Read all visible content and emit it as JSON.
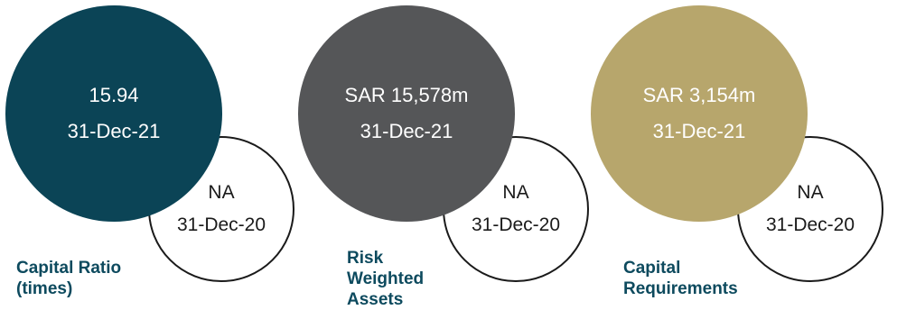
{
  "colors": {
    "teal": "#0b4456",
    "grey": "#555658",
    "gold": "#b7a66c",
    "label": "#0d4a5e"
  },
  "metrics": [
    {
      "label_lines": [
        "Capital Ratio",
        "(times)"
      ],
      "current_value": "15.94",
      "current_date": "31-Dec-21",
      "prior_value": "NA",
      "prior_date": "31-Dec-20"
    },
    {
      "label_lines": [
        "Risk",
        "Weighted",
        "Assets"
      ],
      "current_value": "SAR 15,578m",
      "current_date": "31-Dec-21",
      "prior_value": "NA",
      "prior_date": "31-Dec-20"
    },
    {
      "label_lines": [
        "Capital",
        "Requirements"
      ],
      "current_value": "SAR 3,154m",
      "current_date": "31-Dec-21",
      "prior_value": "NA",
      "prior_date": "31-Dec-20"
    }
  ]
}
